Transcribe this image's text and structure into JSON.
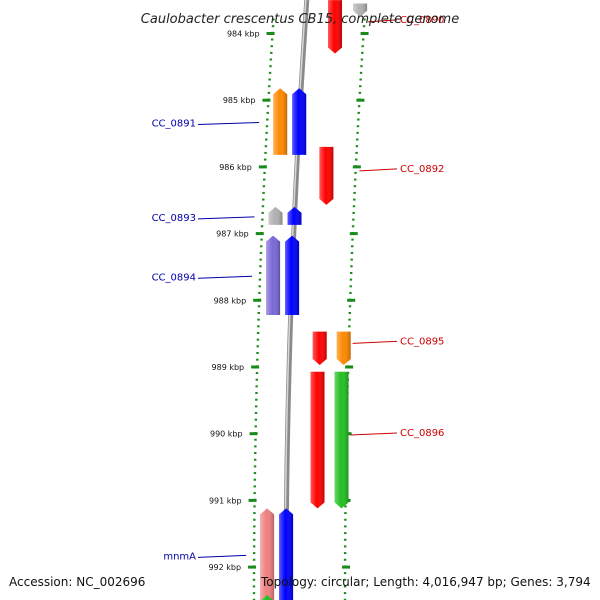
{
  "title": "Caulobacter crescentus CB15, complete genome",
  "footer": {
    "accession": "Accession: NC_002696",
    "summary": "Topology: circular; Length: 4,016,947 bp; Genes: 3,794"
  },
  "colors": {
    "forward_label": "#cc0000",
    "reverse_label": "#0000aa",
    "backbone": "#8a8a8a",
    "tick": "#1a8a1a",
    "red": "#ff0000",
    "blue": "#0000ff",
    "orange": "#ff8800",
    "gray": "#b0b0b0",
    "purple": "#7b68d8",
    "green": "#22c022",
    "pink": "#f08080"
  },
  "chart_data": {
    "type": "genome-map",
    "axis_unit": "kbp",
    "ticks": [
      {
        "kbp": 984,
        "label": "984 kbp"
      },
      {
        "kbp": 985,
        "label": "985 kbp"
      },
      {
        "kbp": 986,
        "label": "986 kbp"
      },
      {
        "kbp": 987,
        "label": "987 kbp"
      },
      {
        "kbp": 988,
        "label": "988 kbp"
      },
      {
        "kbp": 989,
        "label": "989 kbp"
      },
      {
        "kbp": 990,
        "label": "990 kbp"
      },
      {
        "kbp": 991,
        "label": "991 kbp"
      },
      {
        "kbp": 992,
        "label": "992 kbp"
      }
    ],
    "features": [
      {
        "id": "cc0890-gray",
        "strand": "+",
        "ring": "outer",
        "color": "gray",
        "start": 983.55,
        "end": 983.75,
        "label": ""
      },
      {
        "id": "cc0890",
        "strand": "+",
        "ring": "inner",
        "color": "red",
        "start": 983.5,
        "end": 984.3,
        "label": "CC_0890"
      },
      {
        "id": "cc0891-orange",
        "strand": "-",
        "ring": "outer",
        "color": "orange",
        "start": 984.82,
        "end": 985.82,
        "label": ""
      },
      {
        "id": "cc0891",
        "strand": "-",
        "ring": "inner",
        "color": "blue",
        "start": 984.82,
        "end": 985.82,
        "label": "CC_0891"
      },
      {
        "id": "cc0892",
        "strand": "+",
        "ring": "inner",
        "color": "red",
        "start": 985.7,
        "end": 986.57,
        "label": "CC_0892"
      },
      {
        "id": "cc0893-gray",
        "strand": "-",
        "ring": "outer",
        "color": "gray",
        "start": 986.6,
        "end": 986.87,
        "label": ""
      },
      {
        "id": "cc0893",
        "strand": "-",
        "ring": "inner",
        "color": "blue",
        "start": 986.6,
        "end": 986.87,
        "label": "CC_0893"
      },
      {
        "id": "cc0894-purple",
        "strand": "-",
        "ring": "outer",
        "color": "purple",
        "start": 987.03,
        "end": 988.22,
        "label": ""
      },
      {
        "id": "cc0894",
        "strand": "-",
        "ring": "inner",
        "color": "blue",
        "start": 987.03,
        "end": 988.22,
        "label": "CC_0894"
      },
      {
        "id": "cc0895",
        "strand": "+",
        "ring": "inner",
        "color": "red",
        "start": 988.47,
        "end": 988.97,
        "label": "CC_0895"
      },
      {
        "id": "cc0895-orange",
        "strand": "+",
        "ring": "outer",
        "color": "orange",
        "start": 988.47,
        "end": 988.97,
        "label": ""
      },
      {
        "id": "cc0896",
        "strand": "+",
        "ring": "inner",
        "color": "red",
        "start": 989.07,
        "end": 991.12,
        "label": "CC_0896"
      },
      {
        "id": "cc0896-green",
        "strand": "+",
        "ring": "outer",
        "color": "green",
        "start": 989.07,
        "end": 991.12,
        "label": ""
      },
      {
        "id": "mnmA-pink",
        "strand": "-",
        "ring": "outer",
        "color": "pink",
        "start": 991.12,
        "end": 992.5,
        "label": ""
      },
      {
        "id": "mnmA",
        "strand": "-",
        "ring": "inner",
        "color": "blue",
        "start": 991.12,
        "end": 992.5,
        "label": "mnmA"
      },
      {
        "id": "next-green",
        "strand": "-",
        "ring": "outer",
        "color": "green",
        "start": 992.42,
        "end": 992.6,
        "label": ""
      },
      {
        "id": "next-blue",
        "strand": "-",
        "ring": "inner",
        "color": "blue",
        "start": 992.42,
        "end": 992.6,
        "label": ""
      }
    ]
  }
}
